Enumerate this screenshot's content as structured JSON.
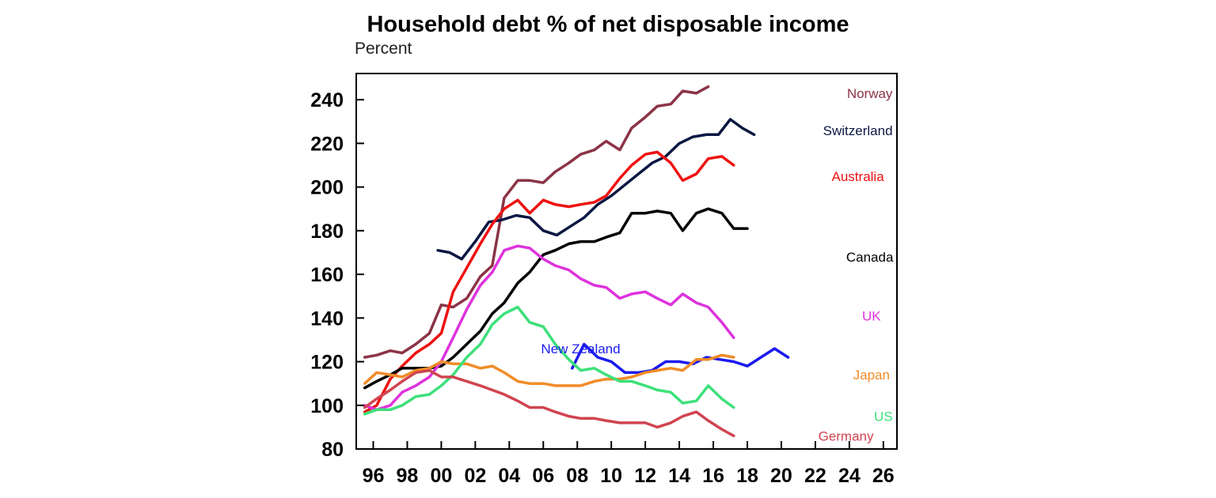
{
  "chart_data": {
    "type": "line",
    "title": "Household debt % of net disposable income",
    "ylabel": "Percent",
    "xlabel": "",
    "xlim": [
      1995,
      2026.8
    ],
    "ylim": [
      80,
      252
    ],
    "yticks": [
      80,
      100,
      120,
      140,
      160,
      180,
      200,
      220,
      240
    ],
    "xticks": [
      {
        "x": 1996,
        "label": "96"
      },
      {
        "x": 1998,
        "label": "98"
      },
      {
        "x": 2000,
        "label": "00"
      },
      {
        "x": 2002,
        "label": "02"
      },
      {
        "x": 2004,
        "label": "04"
      },
      {
        "x": 2006,
        "label": "06"
      },
      {
        "x": 2008,
        "label": "08"
      },
      {
        "x": 2010,
        "label": "10"
      },
      {
        "x": 2012,
        "label": "12"
      },
      {
        "x": 2014,
        "label": "14"
      },
      {
        "x": 2016,
        "label": "16"
      },
      {
        "x": 2018,
        "label": "18"
      },
      {
        "x": 2020,
        "label": "20"
      },
      {
        "x": 2022,
        "label": "22"
      },
      {
        "x": 2024,
        "label": "24"
      },
      {
        "x": 2026,
        "label": "26"
      }
    ],
    "grid": false,
    "legend": "inline labels",
    "series": [
      {
        "name": "Norway",
        "color": "#8B3446",
        "label_at": [
          2025.2,
          243
        ],
        "points": [
          [
            1995.5,
            122
          ],
          [
            1996.2,
            123
          ],
          [
            1997,
            125
          ],
          [
            1997.7,
            124
          ],
          [
            1998.5,
            128
          ],
          [
            1999.3,
            133
          ],
          [
            2000,
            146
          ],
          [
            2000.7,
            145
          ],
          [
            2001.5,
            149
          ],
          [
            2002.3,
            159
          ],
          [
            2003,
            164
          ],
          [
            2003.7,
            195
          ],
          [
            2004.5,
            203
          ],
          [
            2005.2,
            203
          ],
          [
            2006,
            202
          ],
          [
            2006.7,
            207
          ],
          [
            2007.5,
            211
          ],
          [
            2008.2,
            215
          ],
          [
            2009,
            217
          ],
          [
            2009.7,
            221
          ],
          [
            2010.5,
            217
          ],
          [
            2011.2,
            227
          ],
          [
            2012,
            232
          ],
          [
            2012.7,
            237
          ],
          [
            2013.5,
            238
          ],
          [
            2014.2,
            244
          ],
          [
            2015,
            243
          ],
          [
            2015.7,
            246
          ]
        ]
      },
      {
        "name": "Switzerland",
        "color": "#0B1742",
        "label_at": [
          2024.5,
          226
        ],
        "points": [
          [
            1999.8,
            171
          ],
          [
            2000.5,
            170
          ],
          [
            2001.2,
            167
          ],
          [
            2002,
            175
          ],
          [
            2002.8,
            184
          ],
          [
            2003.6,
            185
          ],
          [
            2004.4,
            187
          ],
          [
            2005.2,
            186
          ],
          [
            2006,
            180
          ],
          [
            2006.8,
            178
          ],
          [
            2007.6,
            182
          ],
          [
            2008.4,
            186
          ],
          [
            2009.2,
            192
          ],
          [
            2010,
            196
          ],
          [
            2010.8,
            201
          ],
          [
            2011.6,
            206
          ],
          [
            2012.4,
            211
          ],
          [
            2013.2,
            214
          ],
          [
            2014,
            220
          ],
          [
            2014.8,
            223
          ],
          [
            2015.6,
            224
          ],
          [
            2016.3,
            224
          ],
          [
            2017,
            231
          ],
          [
            2017.7,
            227
          ],
          [
            2018.4,
            224
          ]
        ]
      },
      {
        "name": "Australia",
        "color": "#EE1111",
        "label_at": [
          2024.5,
          205
        ],
        "points": [
          [
            1995.5,
            97
          ],
          [
            1996.2,
            100
          ],
          [
            1997,
            112
          ],
          [
            1997.7,
            118
          ],
          [
            1998.5,
            124
          ],
          [
            1999.3,
            128
          ],
          [
            2000,
            133
          ],
          [
            2000.7,
            152
          ],
          [
            2001.5,
            163
          ],
          [
            2002.3,
            174
          ],
          [
            2003,
            183
          ],
          [
            2003.7,
            190
          ],
          [
            2004.5,
            194
          ],
          [
            2005.2,
            188
          ],
          [
            2006,
            194
          ],
          [
            2006.7,
            192
          ],
          [
            2007.5,
            191
          ],
          [
            2008.2,
            192
          ],
          [
            2009,
            193
          ],
          [
            2009.7,
            196
          ],
          [
            2010.5,
            204
          ],
          [
            2011.2,
            210
          ],
          [
            2012,
            215
          ],
          [
            2012.7,
            216
          ],
          [
            2013.5,
            211
          ],
          [
            2014.2,
            203
          ],
          [
            2015,
            206
          ],
          [
            2015.7,
            213
          ],
          [
            2016.5,
            214
          ],
          [
            2017.2,
            210
          ]
        ]
      },
      {
        "name": "Canada",
        "color": "#000000",
        "label_at": [
          2025.2,
          168
        ],
        "points": [
          [
            1995.5,
            108
          ],
          [
            1996.2,
            111
          ],
          [
            1997,
            114
          ],
          [
            1997.7,
            117
          ],
          [
            1998.5,
            117
          ],
          [
            1999.3,
            117
          ],
          [
            2000,
            118
          ],
          [
            2000.7,
            122
          ],
          [
            2001.5,
            128
          ],
          [
            2002.3,
            134
          ],
          [
            2003,
            142
          ],
          [
            2003.7,
            147
          ],
          [
            2004.5,
            156
          ],
          [
            2005.2,
            161
          ],
          [
            2006,
            169
          ],
          [
            2006.7,
            171
          ],
          [
            2007.5,
            174
          ],
          [
            2008.2,
            175
          ],
          [
            2009,
            175
          ],
          [
            2009.7,
            177
          ],
          [
            2010.5,
            179
          ],
          [
            2011.2,
            188
          ],
          [
            2012,
            188
          ],
          [
            2012.7,
            189
          ],
          [
            2013.5,
            188
          ],
          [
            2014.2,
            180
          ],
          [
            2015,
            188
          ],
          [
            2015.7,
            190
          ],
          [
            2016.5,
            188
          ],
          [
            2017.2,
            181
          ],
          [
            2018,
            181
          ]
        ]
      },
      {
        "name": "UK",
        "color": "#DD33DD",
        "label_at": [
          2025.3,
          141
        ],
        "points": [
          [
            1995.5,
            100
          ],
          [
            1996.2,
            98
          ],
          [
            1997,
            100
          ],
          [
            1997.7,
            106
          ],
          [
            1998.5,
            109
          ],
          [
            1999.3,
            113
          ],
          [
            2000,
            120
          ],
          [
            2000.7,
            131
          ],
          [
            2001.5,
            144
          ],
          [
            2002.3,
            155
          ],
          [
            2003,
            161
          ],
          [
            2003.7,
            171
          ],
          [
            2004.5,
            173
          ],
          [
            2005.2,
            172
          ],
          [
            2006,
            167
          ],
          [
            2006.7,
            164
          ],
          [
            2007.5,
            162
          ],
          [
            2008.2,
            158
          ],
          [
            2009,
            155
          ],
          [
            2009.7,
            154
          ],
          [
            2010.5,
            149
          ],
          [
            2011.2,
            151
          ],
          [
            2012,
            152
          ],
          [
            2012.7,
            149
          ],
          [
            2013.5,
            146
          ],
          [
            2014.2,
            151
          ],
          [
            2015,
            147
          ],
          [
            2015.7,
            145
          ],
          [
            2016.5,
            138
          ],
          [
            2017.2,
            131
          ]
        ]
      },
      {
        "name": "New Zealand",
        "color": "#1A1AEE",
        "label_at": [
          2008.2,
          126
        ],
        "points": [
          [
            2007.7,
            117
          ],
          [
            2008.4,
            128
          ],
          [
            2009.2,
            122
          ],
          [
            2010,
            120
          ],
          [
            2010.8,
            115
          ],
          [
            2011.6,
            115
          ],
          [
            2012.4,
            116
          ],
          [
            2013.2,
            120
          ],
          [
            2014,
            120
          ],
          [
            2014.8,
            119
          ],
          [
            2015.6,
            122
          ],
          [
            2016.4,
            121
          ],
          [
            2017.2,
            120
          ],
          [
            2018,
            118
          ],
          [
            2018.8,
            122
          ],
          [
            2019.6,
            126
          ],
          [
            2020.4,
            122
          ]
        ]
      },
      {
        "name": "Japan",
        "color": "#F08C28",
        "label_at": [
          2025.3,
          114
        ],
        "points": [
          [
            1995.5,
            110
          ],
          [
            1996.2,
            115
          ],
          [
            1997,
            114
          ],
          [
            1997.7,
            113
          ],
          [
            1998.5,
            116
          ],
          [
            1999.3,
            117
          ],
          [
            2000,
            120
          ],
          [
            2000.7,
            119
          ],
          [
            2001.5,
            119
          ],
          [
            2002.3,
            117
          ],
          [
            2003,
            118
          ],
          [
            2003.7,
            115
          ],
          [
            2004.5,
            111
          ],
          [
            2005.2,
            110
          ],
          [
            2006,
            110
          ],
          [
            2006.7,
            109
          ],
          [
            2007.5,
            109
          ],
          [
            2008.2,
            109
          ],
          [
            2009,
            111
          ],
          [
            2009.7,
            112
          ],
          [
            2010.5,
            112
          ],
          [
            2011.2,
            113
          ],
          [
            2012,
            115
          ],
          [
            2012.7,
            116
          ],
          [
            2013.5,
            117
          ],
          [
            2014.2,
            116
          ],
          [
            2015,
            121
          ],
          [
            2015.7,
            121
          ],
          [
            2016.5,
            123
          ],
          [
            2017.2,
            122
          ]
        ]
      },
      {
        "name": "US",
        "color": "#3DE07A",
        "label_at": [
          2026,
          95
        ],
        "points": [
          [
            1995.5,
            96
          ],
          [
            1996.2,
            98
          ],
          [
            1997,
            98
          ],
          [
            1997.7,
            100
          ],
          [
            1998.5,
            104
          ],
          [
            1999.3,
            105
          ],
          [
            2000,
            109
          ],
          [
            2000.7,
            114
          ],
          [
            2001.5,
            122
          ],
          [
            2002.3,
            128
          ],
          [
            2003,
            137
          ],
          [
            2003.7,
            142
          ],
          [
            2004.5,
            145
          ],
          [
            2005.2,
            138
          ],
          [
            2006,
            136
          ],
          [
            2006.7,
            128
          ],
          [
            2007.5,
            121
          ],
          [
            2008.2,
            116
          ],
          [
            2009,
            117
          ],
          [
            2009.7,
            114
          ],
          [
            2010.5,
            111
          ],
          [
            2011.2,
            111
          ],
          [
            2012,
            109
          ],
          [
            2012.7,
            107
          ],
          [
            2013.5,
            106
          ],
          [
            2014.2,
            101
          ],
          [
            2015,
            102
          ],
          [
            2015.7,
            109
          ],
          [
            2016.5,
            103
          ],
          [
            2017.2,
            99
          ]
        ]
      },
      {
        "name": "Germany",
        "color": "#D04450",
        "label_at": [
          2023.8,
          86
        ],
        "points": [
          [
            1995.5,
            99
          ],
          [
            1996.2,
            103
          ],
          [
            1997,
            107
          ],
          [
            1997.7,
            111
          ],
          [
            1998.5,
            115
          ],
          [
            1999.3,
            116
          ],
          [
            2000,
            113
          ],
          [
            2000.7,
            113
          ],
          [
            2001.5,
            111
          ],
          [
            2002.3,
            109
          ],
          [
            2003,
            107
          ],
          [
            2003.7,
            105
          ],
          [
            2004.5,
            102
          ],
          [
            2005.2,
            99
          ],
          [
            2006,
            99
          ],
          [
            2006.7,
            97
          ],
          [
            2007.5,
            95
          ],
          [
            2008.2,
            94
          ],
          [
            2009,
            94
          ],
          [
            2009.7,
            93
          ],
          [
            2010.5,
            92
          ],
          [
            2011.2,
            92
          ],
          [
            2012,
            92
          ],
          [
            2012.7,
            90
          ],
          [
            2013.5,
            92
          ],
          [
            2014.2,
            95
          ],
          [
            2015,
            97
          ],
          [
            2015.7,
            93
          ],
          [
            2016.5,
            89
          ],
          [
            2017.2,
            86
          ]
        ]
      }
    ]
  }
}
